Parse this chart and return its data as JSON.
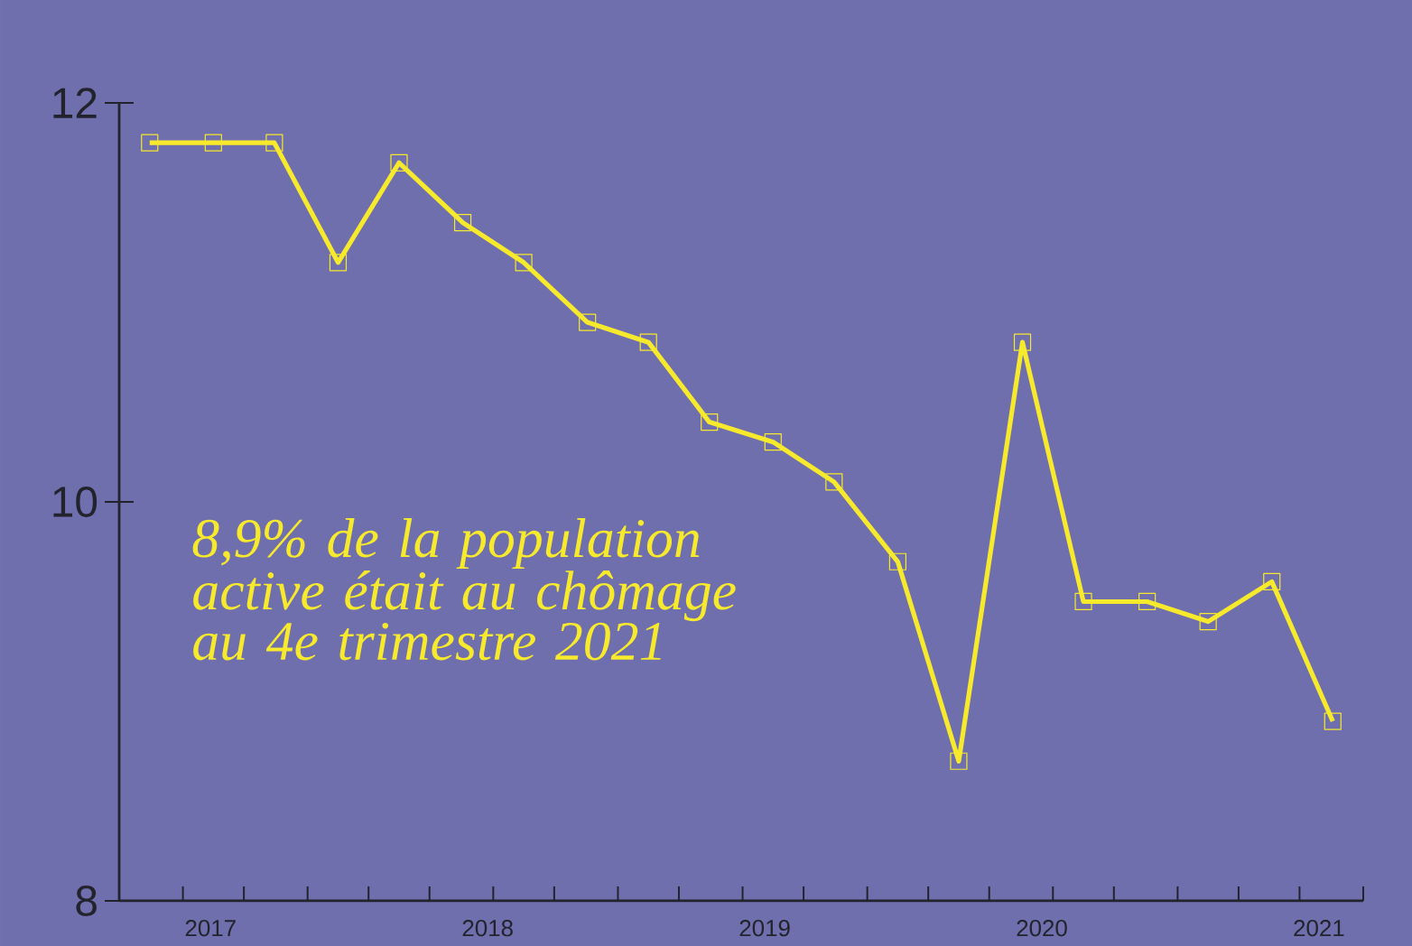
{
  "chart_data": {
    "type": "line",
    "x": [
      2016.78,
      2017.01,
      2017.23,
      2017.46,
      2017.68,
      2017.91,
      2018.13,
      2018.36,
      2018.58,
      2018.8,
      2019.03,
      2019.25,
      2019.48,
      2019.7,
      2019.93,
      2020.15,
      2020.38,
      2020.6,
      2020.83,
      2021.05
    ],
    "series": [
      {
        "color": "#f7e92c",
        "values": [
          11.8,
          11.8,
          11.8,
          11.2,
          11.7,
          11.4,
          11.2,
          10.9,
          10.8,
          10.4,
          10.3,
          10.1,
          9.7,
          8.7,
          10.8,
          9.5,
          9.5,
          9.4,
          9.6,
          8.9
        ]
      }
    ],
    "xlim": [
      2016.67,
      2021.16
    ],
    "xticks": [
      {
        "value": 2017,
        "label": "2017"
      },
      {
        "value": 2018,
        "label": "2018"
      },
      {
        "value": 2019,
        "label": "2019"
      },
      {
        "value": 2020,
        "label": "2020"
      },
      {
        "value": 2021,
        "label": "2021"
      },
      {
        "value": 2016.9,
        "label": null
      },
      {
        "value": 2017.12,
        "label": null
      },
      {
        "value": 2017.35,
        "label": null
      },
      {
        "value": 2017.57,
        "label": null
      },
      {
        "value": 2017.79,
        "label": null
      },
      {
        "value": 2018.02,
        "label": null
      },
      {
        "value": 2018.24,
        "label": null
      },
      {
        "value": 2018.47,
        "label": null
      },
      {
        "value": 2018.69,
        "label": null
      },
      {
        "value": 2018.92,
        "label": null
      },
      {
        "value": 2019.14,
        "label": null
      },
      {
        "value": 2019.37,
        "label": null
      },
      {
        "value": 2019.59,
        "label": null
      },
      {
        "value": 2019.81,
        "label": null
      },
      {
        "value": 2020.04,
        "label": null
      },
      {
        "value": 2020.26,
        "label": null
      },
      {
        "value": 2020.49,
        "label": null
      },
      {
        "value": 2020.71,
        "label": null
      },
      {
        "value": 2020.93,
        "label": null
      },
      {
        "value": 2021.16,
        "label": null
      }
    ],
    "ylim": [
      8,
      12
    ],
    "yticks": [
      8,
      10,
      12
    ],
    "annotations": [
      "8,9% de la population active était au chômage au 4e trimestre 2021"
    ],
    "grid": false,
    "marker": "square",
    "line_style": "solid"
  }
}
